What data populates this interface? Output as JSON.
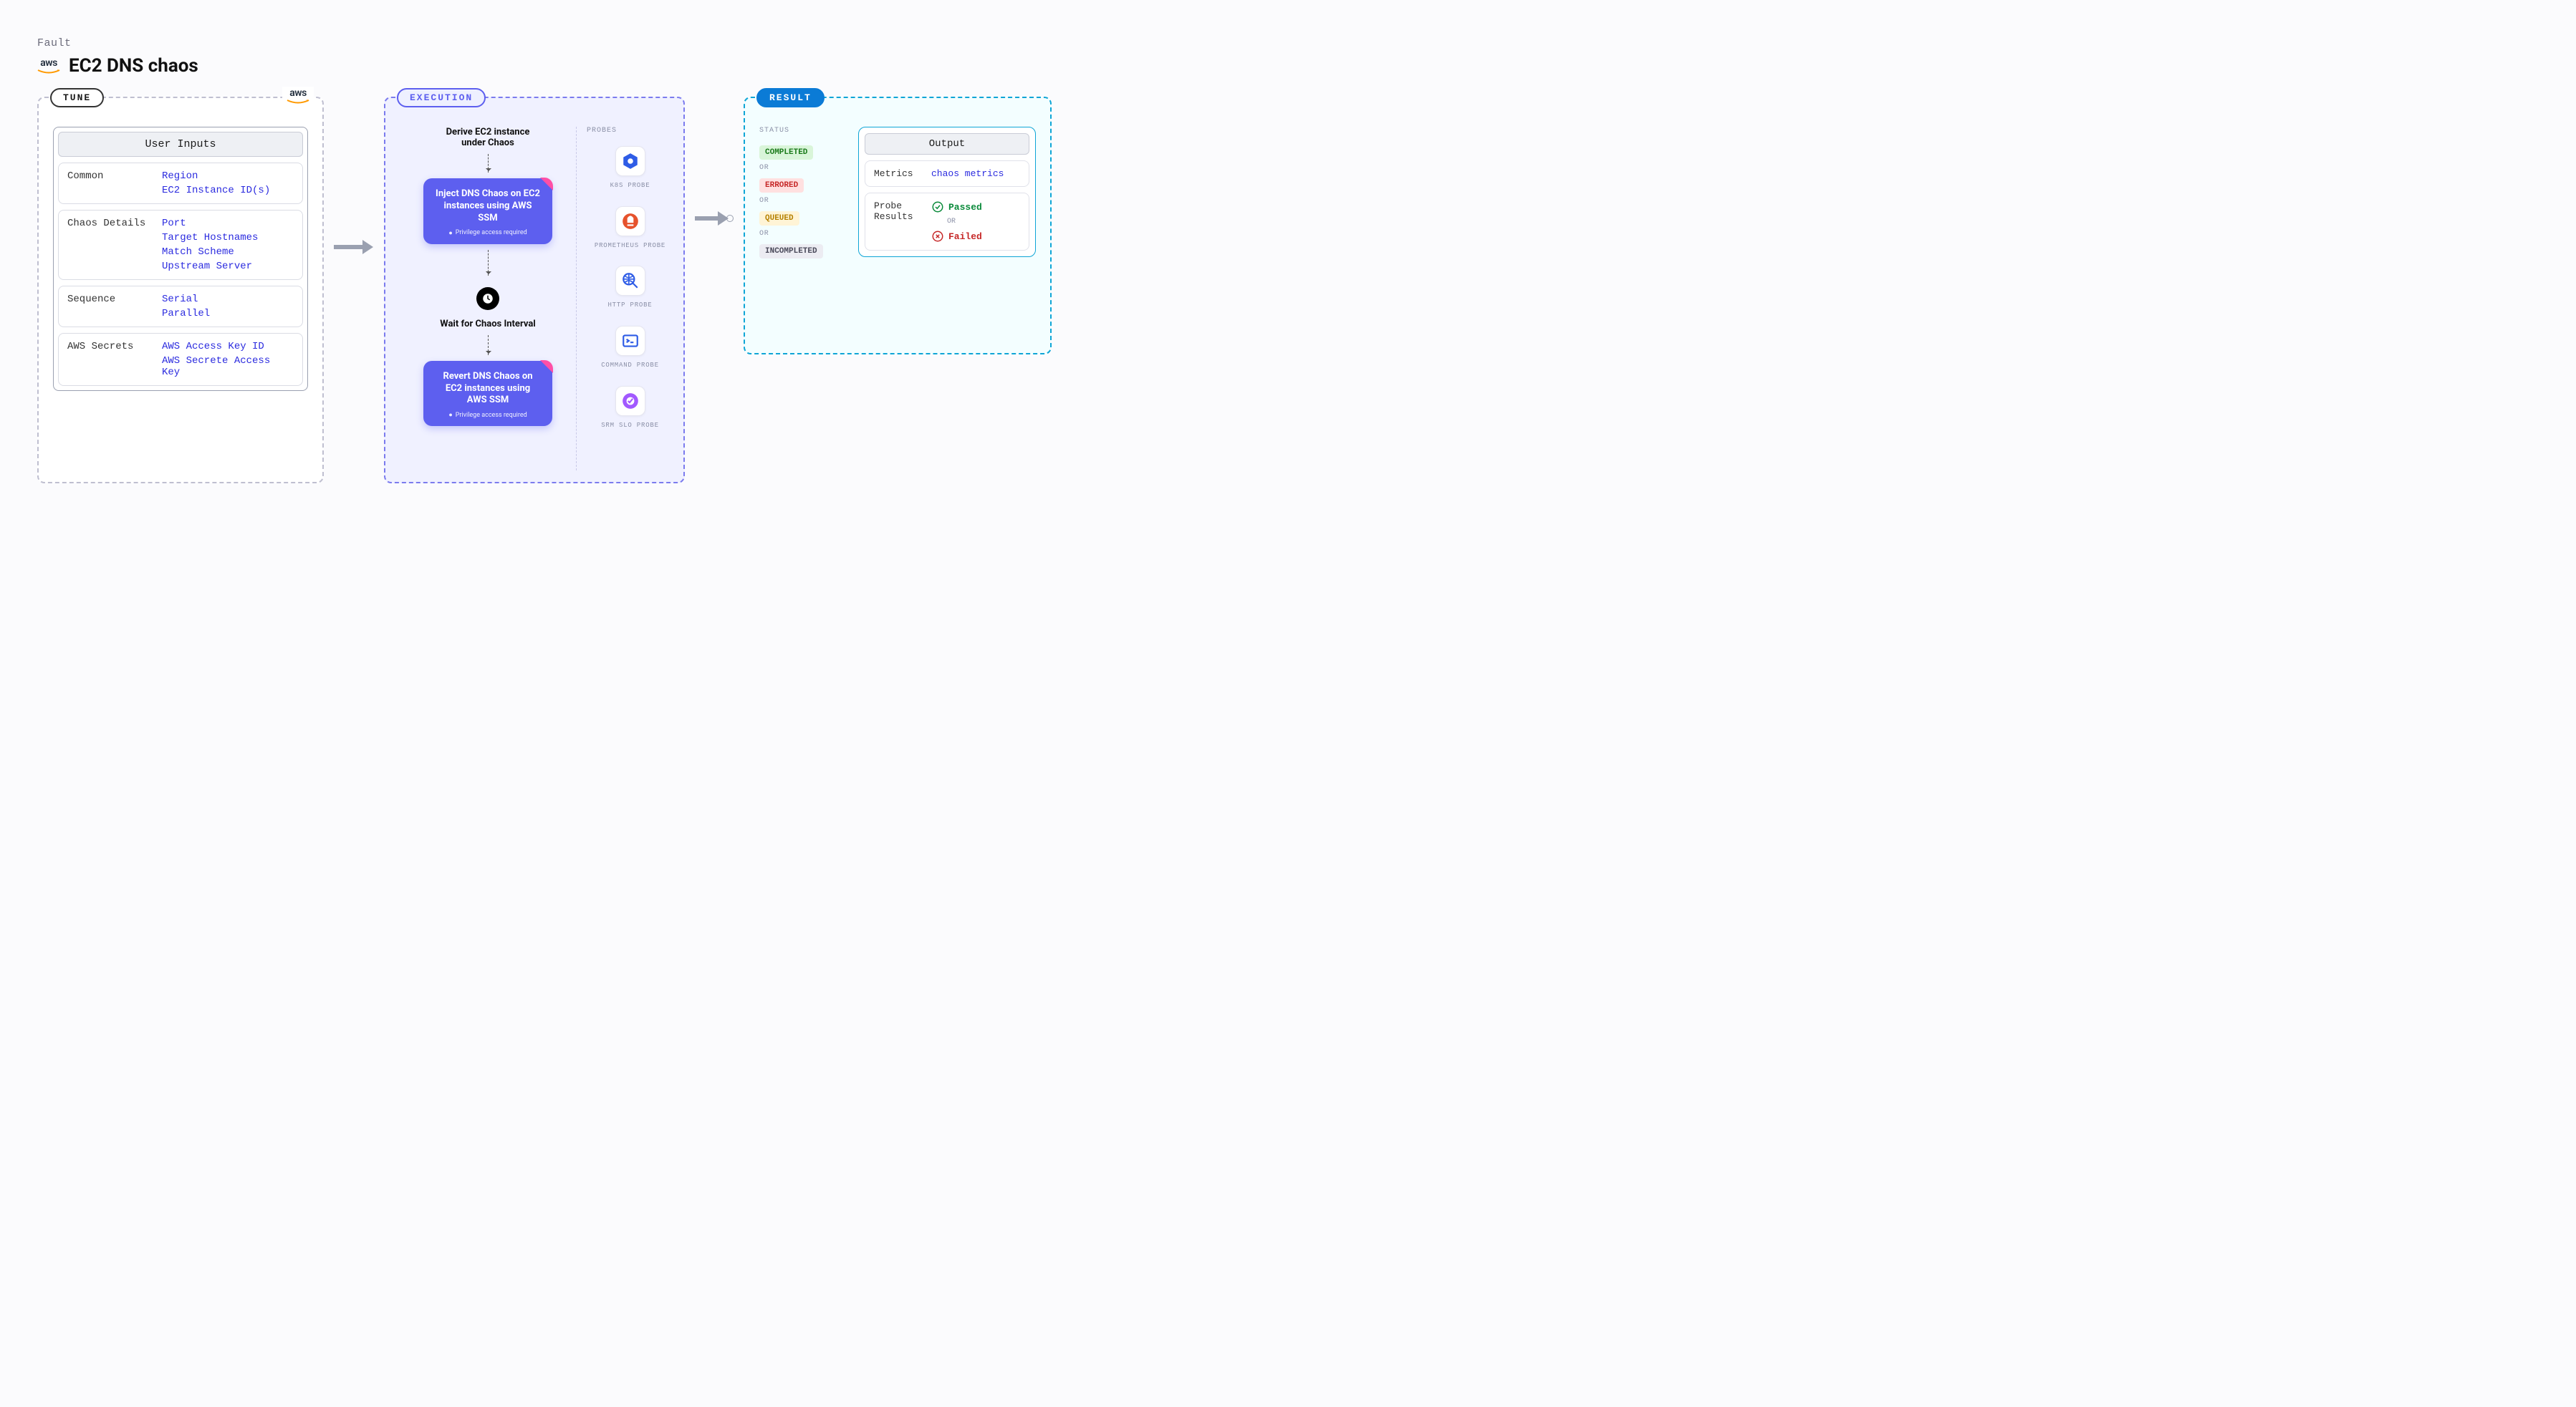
{
  "header": {
    "fault_label": "Fault",
    "title": "EC2 DNS chaos",
    "aws_text": "aws"
  },
  "tune": {
    "label": "TUNE",
    "aws_corner": "aws",
    "inputs_title": "User Inputs",
    "sections": [
      {
        "key": "Common",
        "values": [
          "Region",
          "EC2 Instance ID(s)"
        ]
      },
      {
        "key": "Chaos Details",
        "values": [
          "Port",
          "Target Hostnames",
          "Match Scheme",
          "Upstream Server"
        ]
      },
      {
        "key": "Sequence",
        "values": [
          "Serial",
          "Parallel"
        ]
      },
      {
        "key": "AWS Secrets",
        "values": [
          "AWS Access Key ID",
          "AWS Secrete Access Key"
        ]
      }
    ]
  },
  "execution": {
    "label": "EXECUTION",
    "step1_text": "Derive EC2 instance under Chaos",
    "inject_title": "Inject DNS Chaos on EC2 instances using AWS SSM",
    "inject_note": "Privilege access required",
    "wait_text": "Wait for Chaos Interval",
    "revert_title": "Revert DNS Chaos on EC2 instances using AWS SSM",
    "revert_note": "Privilege access required",
    "probes_title": "PROBES",
    "probes": [
      {
        "label": "K8S PROBE",
        "icon": "k8s"
      },
      {
        "label": "PROMETHEUS PROBE",
        "icon": "prom"
      },
      {
        "label": "HTTP PROBE",
        "icon": "http"
      },
      {
        "label": "COMMAND PROBE",
        "icon": "cmd"
      },
      {
        "label": "SRM SLO PROBE",
        "icon": "srm"
      }
    ]
  },
  "result": {
    "label": "RESULT",
    "status_title": "STATUS",
    "or_label": "OR",
    "statuses": [
      {
        "text": "COMPLETED",
        "bg": "#d9f5d9",
        "fg": "#1a7a1a"
      },
      {
        "text": "ERRORED",
        "bg": "#ffe0e0",
        "fg": "#c62828"
      },
      {
        "text": "QUEUED",
        "bg": "#fff4d6",
        "fg": "#b58100"
      },
      {
        "text": "INCOMPLETED",
        "bg": "#ececf2",
        "fg": "#4a4a5a"
      }
    ],
    "output_title": "Output",
    "metrics_key": "Metrics",
    "metrics_val": "chaos metrics",
    "probe_results_key": "Probe Results",
    "passed": "Passed",
    "failed": "Failed",
    "or2": "OR"
  },
  "colors": {
    "arrow": "#9aa0b0",
    "aws_swoosh": "#ff9900"
  }
}
